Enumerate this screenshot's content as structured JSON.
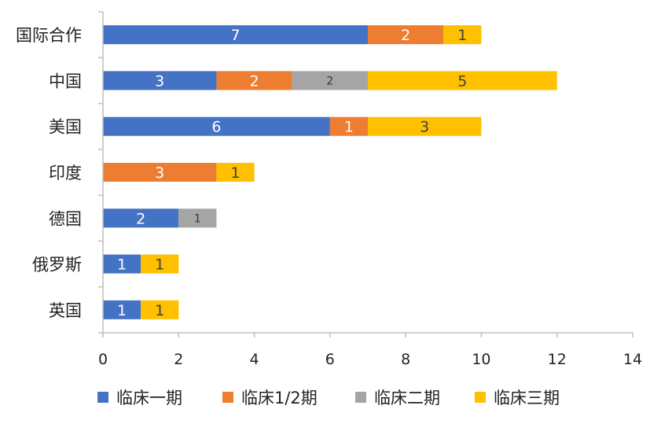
{
  "chart_data": {
    "type": "bar",
    "orientation": "horizontal",
    "stacked": true,
    "categories": [
      "国际合作",
      "中国",
      "美国",
      "印度",
      "德国",
      "俄罗斯",
      "英国"
    ],
    "series": [
      {
        "name": "临床一期",
        "color": "#4472C4",
        "label_color": "#ffffff",
        "values": [
          7,
          3,
          6,
          0,
          2,
          1,
          1
        ]
      },
      {
        "name": "临床1/2期",
        "color": "#ED7D31",
        "label_color": "#ffffff",
        "values": [
          2,
          2,
          1,
          3,
          0,
          0,
          0
        ]
      },
      {
        "name": "临床二期",
        "color": "#A5A5A5",
        "label_color": "#333333",
        "values": [
          0,
          2,
          0,
          0,
          1,
          0,
          0
        ]
      },
      {
        "name": "临床三期",
        "color": "#FFC000",
        "label_color": "#404040",
        "values": [
          1,
          5,
          3,
          1,
          0,
          1,
          1
        ]
      }
    ],
    "xlim": [
      0,
      14
    ],
    "xticks": [
      "0",
      "2",
      "4",
      "6",
      "8",
      "10",
      "12",
      "14"
    ],
    "title": "",
    "xlabel": "",
    "ylabel": "",
    "grid": false,
    "legend_position": "bottom"
  }
}
